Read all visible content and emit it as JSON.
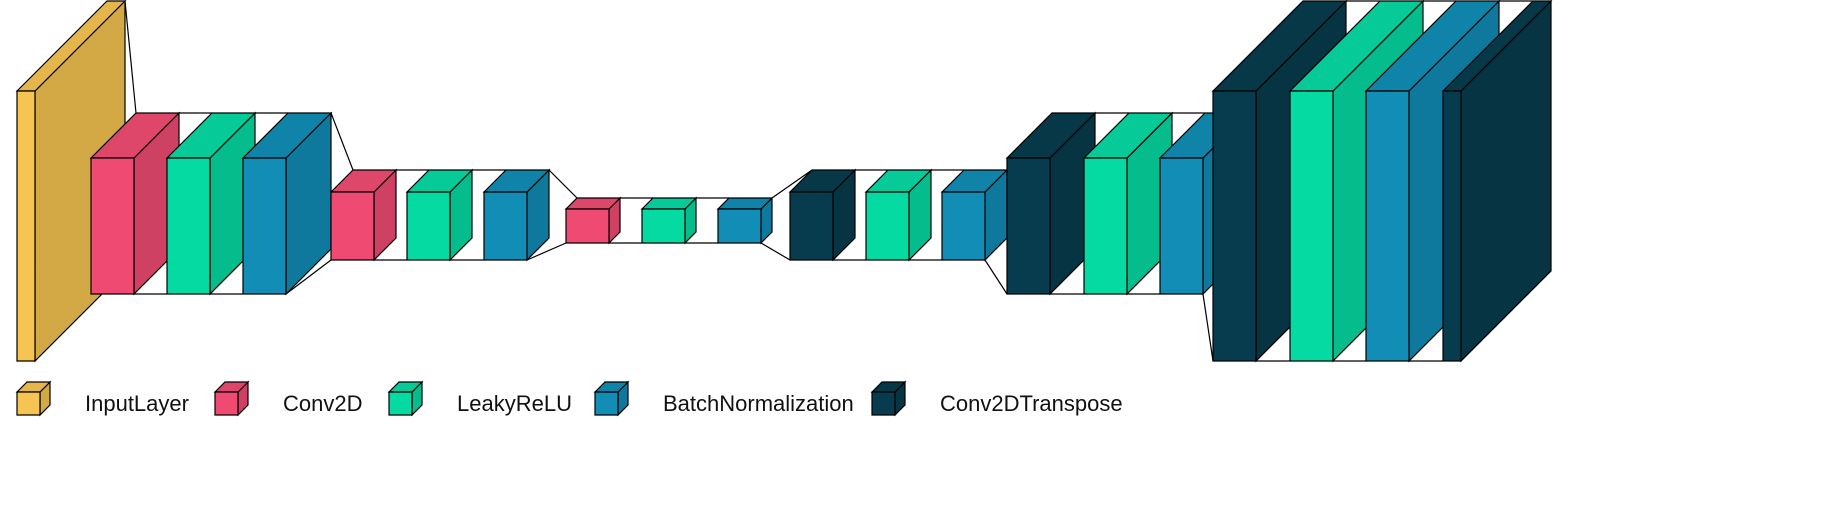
{
  "colors": {
    "InputLayer": "#f0c050",
    "Conv2D": "#ea4a70",
    "LeakyReLU": "#06d6a0",
    "BatchNormalization": "#118ab2",
    "Conv2DTranspose": "#073b4c"
  },
  "legend": [
    {
      "label": "InputLayer",
      "color_key": "InputLayer",
      "icon": "yellow-cube-icon"
    },
    {
      "label": "Conv2D",
      "color_key": "Conv2D",
      "icon": "pink-cube-icon"
    },
    {
      "label": "LeakyReLU",
      "color_key": "LeakyReLU",
      "icon": "green-cube-icon"
    },
    {
      "label": "BatchNormalization",
      "color_key": "BatchNormalization",
      "icon": "blue-cube-icon"
    },
    {
      "label": "Conv2DTranspose",
      "color_key": "Conv2DTranspose",
      "icon": "navy-cube-icon"
    }
  ],
  "layers": [
    {
      "type": "InputLayer"
    },
    {
      "type": "Conv2D"
    },
    {
      "type": "LeakyReLU"
    },
    {
      "type": "BatchNormalization"
    },
    {
      "type": "Conv2D"
    },
    {
      "type": "LeakyReLU"
    },
    {
      "type": "BatchNormalization"
    },
    {
      "type": "Conv2D"
    },
    {
      "type": "LeakyReLU"
    },
    {
      "type": "BatchNormalization"
    },
    {
      "type": "Conv2DTranspose"
    },
    {
      "type": "LeakyReLU"
    },
    {
      "type": "BatchNormalization"
    },
    {
      "type": "Conv2DTranspose"
    },
    {
      "type": "LeakyReLU"
    },
    {
      "type": "BatchNormalization"
    },
    {
      "type": "Conv2DTranspose"
    },
    {
      "type": "LeakyReLU"
    },
    {
      "type": "BatchNormalization"
    },
    {
      "type": "Conv2DTranspose"
    }
  ]
}
